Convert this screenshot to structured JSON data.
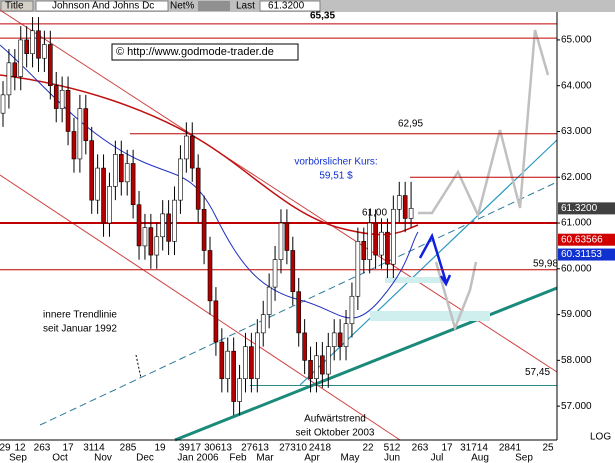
{
  "header": {
    "title_label": "Title",
    "title": "Johnson And Johns Dc",
    "net_label": "Net%",
    "last_label": "Last",
    "last": "61.3200"
  },
  "chart_data": {
    "type": "candlestick",
    "ylim": [
      56.26,
      65.61
    ],
    "yticks": [
      {
        "value": 65,
        "label": "65.000"
      },
      {
        "value": 64,
        "label": "64.000"
      },
      {
        "value": 63,
        "label": "63.000"
      },
      {
        "value": 62,
        "label": "62.000"
      },
      {
        "value": 61,
        "label": "61.000"
      },
      {
        "value": 60,
        "label": "60.000"
      },
      {
        "value": 59,
        "label": "59.000"
      },
      {
        "value": 58,
        "label": "58.000"
      },
      {
        "value": 57,
        "label": "57.000"
      }
    ],
    "scale_label": "LOG",
    "up_color": "#ffffff",
    "down_color": "#b00000",
    "candles": [
      [
        63.4,
        64.1,
        63.1,
        63.8
      ],
      [
        63.8,
        64.8,
        63.5,
        64.5
      ],
      [
        64.5,
        64.8,
        63.9,
        64.2
      ],
      [
        64.2,
        65.3,
        63.9,
        65.0
      ],
      [
        65.0,
        65.3,
        64.4,
        64.7
      ],
      [
        64.7,
        65.5,
        64.4,
        65.2
      ],
      [
        65.2,
        65.5,
        64.3,
        64.6
      ],
      [
        64.6,
        65.2,
        64.3,
        64.9
      ],
      [
        64.9,
        65.2,
        63.7,
        64.0
      ],
      [
        64.0,
        64.3,
        63.2,
        63.5
      ],
      [
        63.5,
        64.2,
        63.2,
        63.9
      ],
      [
        63.9,
        64.2,
        62.7,
        63.0
      ],
      [
        63.0,
        63.3,
        62.1,
        62.4
      ],
      [
        62.4,
        63.8,
        62.1,
        63.5
      ],
      [
        63.5,
        63.8,
        62.5,
        62.8
      ],
      [
        62.8,
        63.1,
        61.2,
        61.5
      ],
      [
        61.5,
        62.5,
        61.2,
        62.2
      ],
      [
        62.2,
        62.5,
        60.7,
        61.0
      ],
      [
        61.0,
        62.1,
        60.7,
        61.8
      ],
      [
        61.8,
        62.8,
        61.5,
        62.5
      ],
      [
        62.5,
        62.8,
        61.6,
        61.9
      ],
      [
        61.9,
        62.6,
        61.6,
        62.3
      ],
      [
        62.3,
        62.6,
        61.1,
        61.4
      ],
      [
        61.4,
        61.7,
        60.2,
        60.5
      ],
      [
        60.5,
        61.2,
        60.2,
        60.9
      ],
      [
        60.9,
        61.2,
        60.0,
        60.3
      ],
      [
        60.3,
        61.0,
        60.0,
        60.7
      ],
      [
        60.7,
        61.5,
        60.4,
        61.2
      ],
      [
        61.2,
        61.5,
        60.3,
        60.6
      ],
      [
        60.6,
        61.8,
        60.3,
        61.5
      ],
      [
        61.5,
        62.7,
        61.2,
        62.4
      ],
      [
        62.4,
        63.2,
        62.1,
        62.9
      ],
      [
        62.9,
        63.2,
        61.9,
        62.2
      ],
      [
        62.2,
        62.5,
        61.0,
        61.3
      ],
      [
        61.3,
        61.6,
        60.1,
        60.4
      ],
      [
        60.4,
        60.7,
        59.0,
        59.3
      ],
      [
        59.3,
        59.6,
        58.1,
        58.4
      ],
      [
        58.4,
        58.7,
        57.3,
        57.6
      ],
      [
        57.6,
        58.5,
        57.3,
        58.2
      ],
      [
        58.2,
        58.5,
        56.8,
        57.1
      ],
      [
        57.1,
        57.9,
        56.8,
        57.6
      ],
      [
        57.6,
        58.6,
        57.3,
        58.3
      ],
      [
        58.3,
        58.6,
        57.3,
        57.6
      ],
      [
        57.6,
        58.9,
        57.3,
        58.6
      ],
      [
        58.6,
        59.3,
        58.3,
        59.0
      ],
      [
        59.0,
        59.9,
        58.7,
        59.6
      ],
      [
        59.6,
        60.5,
        59.3,
        60.2
      ],
      [
        60.2,
        61.3,
        59.9,
        61.0
      ],
      [
        61.0,
        61.3,
        60.1,
        60.4
      ],
      [
        60.4,
        60.7,
        59.2,
        59.5
      ],
      [
        59.5,
        59.8,
        58.3,
        58.6
      ],
      [
        58.6,
        58.9,
        57.7,
        58.0
      ],
      [
        58.0,
        58.3,
        57.3,
        57.6
      ],
      [
        57.6,
        58.4,
        57.3,
        58.1
      ],
      [
        58.1,
        58.4,
        57.4,
        57.7
      ],
      [
        57.7,
        58.6,
        57.4,
        58.3
      ],
      [
        58.3,
        58.9,
        58.0,
        58.6
      ],
      [
        58.6,
        58.9,
        58.0,
        58.3
      ],
      [
        58.3,
        59.1,
        58.0,
        58.8
      ],
      [
        58.8,
        59.7,
        58.5,
        59.4
      ],
      [
        59.4,
        60.9,
        59.1,
        60.6
      ],
      [
        60.6,
        60.9,
        59.9,
        60.2
      ],
      [
        60.2,
        61.3,
        59.9,
        61.0
      ],
      [
        61.0,
        61.3,
        60.0,
        60.3
      ],
      [
        60.3,
        61.1,
        60.0,
        60.8
      ],
      [
        60.8,
        61.1,
        59.8,
        60.1
      ],
      [
        60.1,
        61.6,
        59.8,
        61.3
      ],
      [
        61.3,
        61.9,
        61.0,
        61.6
      ],
      [
        61.6,
        61.9,
        60.8,
        61.1
      ],
      [
        61.1,
        61.9,
        60.9,
        61.32
      ]
    ],
    "levels": [
      {
        "value": 65.35,
        "label": "65,35",
        "color": "#c00000"
      },
      {
        "value": 65.04,
        "color": "#c00000"
      },
      {
        "value": 62.95,
        "label": "62,95",
        "color": "#c00000"
      },
      {
        "value": 62.0,
        "color": "#c00000"
      },
      {
        "value": 61.0,
        "label": "61,00",
        "color": "#c00000"
      },
      {
        "value": 59.98,
        "label": "59,98",
        "color": "#c00000"
      },
      {
        "value": 57.45,
        "label": "57,45",
        "color": "#2a8a8a"
      }
    ],
    "markers": [
      {
        "value": 61.32,
        "label": "61.3200",
        "color": "#404040"
      },
      {
        "value": 60.63566,
        "label": "60.63566",
        "color": "#d00000"
      },
      {
        "value": 60.31153,
        "label": "60.31153",
        "color": "#1030d0"
      }
    ],
    "x_days": [
      "29",
      "12",
      "263",
      "17",
      "3114",
      "285",
      "19",
      "3917",
      "30613",
      "27613",
      "27310",
      "2418",
      "22",
      "512",
      "263",
      "17",
      "31714",
      "2841",
      "25"
    ],
    "x_months": [
      "Sep",
      "Oct",
      "Nov",
      "Dec",
      "Jan 2006",
      "Feb",
      "Mar",
      "Apr",
      "May",
      "Jun",
      "Jul",
      "Aug",
      "Sep"
    ],
    "annotations": {
      "copyright": "© http://www.godmode-trader.de",
      "premarket": "vorbörslicher Kurs:",
      "premarket_value": "59,51 $",
      "inner_1": "innere Trendlinie",
      "inner_2": "seit Januar 1992",
      "trend_1": "Aufwärtstrend",
      "trend_2": "seit Oktober 2003"
    }
  }
}
